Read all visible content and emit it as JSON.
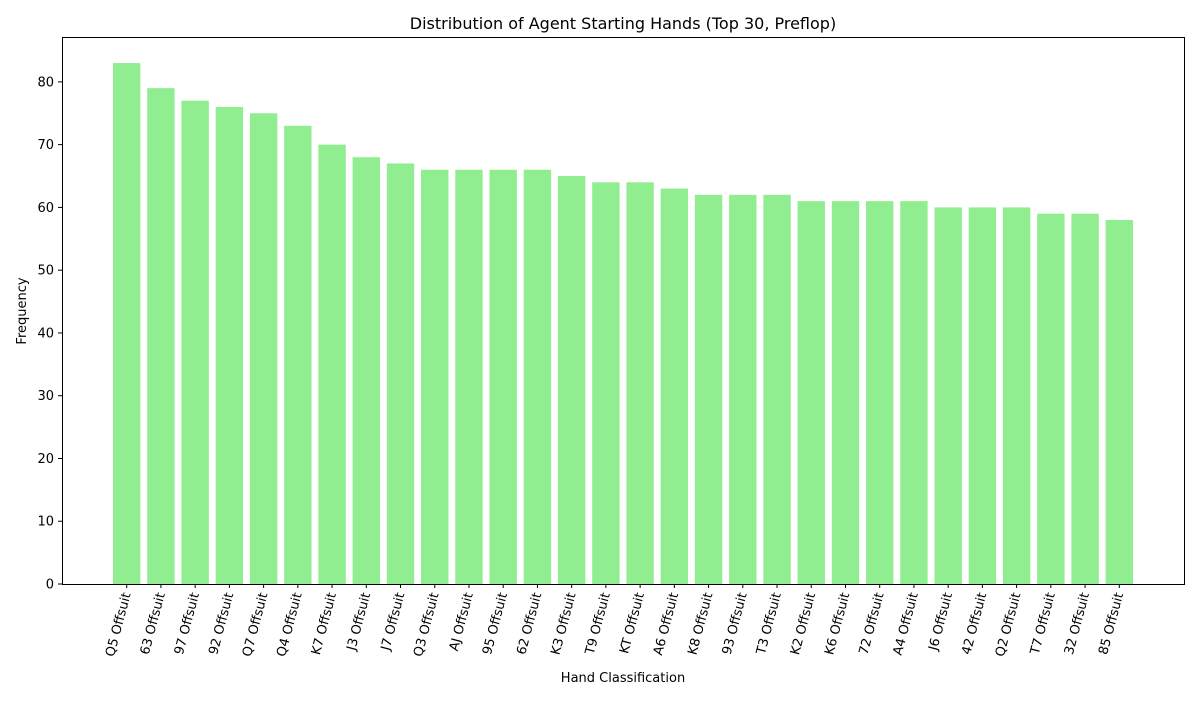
{
  "chart_data": {
    "type": "bar",
    "title": "Distribution of Agent Starting Hands (Top 30, Preflop)",
    "xlabel": "Hand Classification",
    "ylabel": "Frequency",
    "ylim": [
      0,
      87.15
    ],
    "yticks": [
      0,
      10,
      20,
      30,
      40,
      50,
      60,
      70,
      80
    ],
    "grid": false,
    "bar_color": "#90ee90",
    "categories": [
      "Q5 Offsuit",
      "63 Offsuit",
      "97 Offsuit",
      "92 Offsuit",
      "Q7 Offsuit",
      "Q4 Offsuit",
      "K7 Offsuit",
      "J3 Offsuit",
      "J7 Offsuit",
      "Q3 Offsuit",
      "AJ Offsuit",
      "95 Offsuit",
      "62 Offsuit",
      "K3 Offsuit",
      "T9 Offsuit",
      "KT Offsuit",
      "A6 Offsuit",
      "K8 Offsuit",
      "93 Offsuit",
      "T3 Offsuit",
      "K2 Offsuit",
      "K6 Offsuit",
      "72 Offsuit",
      "A4 Offsuit",
      "J6 Offsuit",
      "42 Offsuit",
      "Q2 Offsuit",
      "T7 Offsuit",
      "32 Offsuit",
      "85 Offsuit"
    ],
    "values": [
      83,
      79,
      77,
      76,
      75,
      73,
      70,
      68,
      67,
      66,
      66,
      66,
      66,
      65,
      64,
      64,
      63,
      62,
      62,
      62,
      61,
      61,
      61,
      61,
      60,
      60,
      60,
      59,
      59,
      58
    ]
  }
}
